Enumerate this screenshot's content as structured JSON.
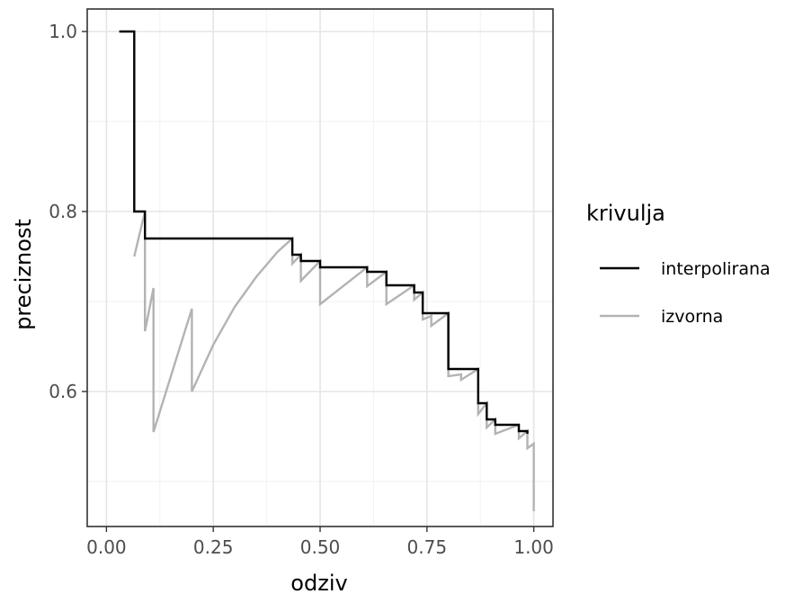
{
  "chart_data": {
    "type": "line",
    "xlabel": "odziv",
    "ylabel": "preciznost",
    "xlim": [
      -0.045,
      1.045
    ],
    "ylim": [
      0.45,
      1.025
    ],
    "x_ticks": [
      0.0,
      0.25,
      0.5,
      0.75,
      1.0
    ],
    "x_tick_labels": [
      "0.00",
      "0.25",
      "0.50",
      "0.75",
      "1.00"
    ],
    "y_ticks": [
      0.6,
      0.8,
      1.0
    ],
    "y_tick_labels": [
      "0.6",
      "0.8",
      "1.0"
    ],
    "y_minor_ticks": [
      0.5,
      0.7,
      0.9
    ],
    "x_minor_ticks": [
      0.125,
      0.375,
      0.625,
      0.875
    ],
    "grid": true,
    "legend": {
      "title": "krivulja",
      "position": "right"
    },
    "series": [
      {
        "name": "interpolirana",
        "color": "#000000",
        "points": [
          [
            0.03,
            1.0
          ],
          [
            0.065,
            1.0
          ],
          [
            0.065,
            0.8
          ],
          [
            0.09,
            0.8
          ],
          [
            0.09,
            0.77
          ],
          [
            0.435,
            0.77
          ],
          [
            0.435,
            0.752
          ],
          [
            0.455,
            0.752
          ],
          [
            0.455,
            0.745
          ],
          [
            0.5,
            0.745
          ],
          [
            0.5,
            0.738
          ],
          [
            0.61,
            0.738
          ],
          [
            0.61,
            0.733
          ],
          [
            0.655,
            0.733
          ],
          [
            0.655,
            0.718
          ],
          [
            0.72,
            0.718
          ],
          [
            0.72,
            0.71
          ],
          [
            0.74,
            0.71
          ],
          [
            0.74,
            0.687
          ],
          [
            0.8,
            0.687
          ],
          [
            0.8,
            0.625
          ],
          [
            0.87,
            0.625
          ],
          [
            0.87,
            0.587
          ],
          [
            0.89,
            0.587
          ],
          [
            0.89,
            0.569
          ],
          [
            0.91,
            0.569
          ],
          [
            0.91,
            0.563
          ],
          [
            0.965,
            0.563
          ],
          [
            0.965,
            0.556
          ],
          [
            0.985,
            0.556
          ],
          [
            0.985,
            0.553
          ]
        ]
      },
      {
        "name": "izvorna",
        "color": "#b3b3b3",
        "points": [
          [
            0.065,
            0.75
          ],
          [
            0.09,
            0.8
          ],
          [
            0.09,
            0.667
          ],
          [
            0.11,
            0.715
          ],
          [
            0.11,
            0.555
          ],
          [
            0.2,
            0.692
          ],
          [
            0.2,
            0.6
          ],
          [
            0.25,
            0.652
          ],
          [
            0.3,
            0.694
          ],
          [
            0.35,
            0.727
          ],
          [
            0.4,
            0.755
          ],
          [
            0.435,
            0.77
          ],
          [
            0.435,
            0.742
          ],
          [
            0.455,
            0.752
          ],
          [
            0.455,
            0.723
          ],
          [
            0.5,
            0.745
          ],
          [
            0.5,
            0.697
          ],
          [
            0.61,
            0.738
          ],
          [
            0.61,
            0.717
          ],
          [
            0.655,
            0.733
          ],
          [
            0.655,
            0.697
          ],
          [
            0.72,
            0.718
          ],
          [
            0.72,
            0.702
          ],
          [
            0.74,
            0.71
          ],
          [
            0.74,
            0.68
          ],
          [
            0.76,
            0.684
          ],
          [
            0.76,
            0.673
          ],
          [
            0.8,
            0.687
          ],
          [
            0.8,
            0.617
          ],
          [
            0.83,
            0.619
          ],
          [
            0.83,
            0.613
          ],
          [
            0.87,
            0.625
          ],
          [
            0.87,
            0.575
          ],
          [
            0.89,
            0.587
          ],
          [
            0.89,
            0.56
          ],
          [
            0.91,
            0.569
          ],
          [
            0.91,
            0.553
          ],
          [
            0.965,
            0.563
          ],
          [
            0.965,
            0.548
          ],
          [
            0.985,
            0.556
          ],
          [
            0.985,
            0.537
          ],
          [
            1.0,
            0.542
          ],
          [
            1.0,
            0.467
          ]
        ]
      }
    ]
  }
}
